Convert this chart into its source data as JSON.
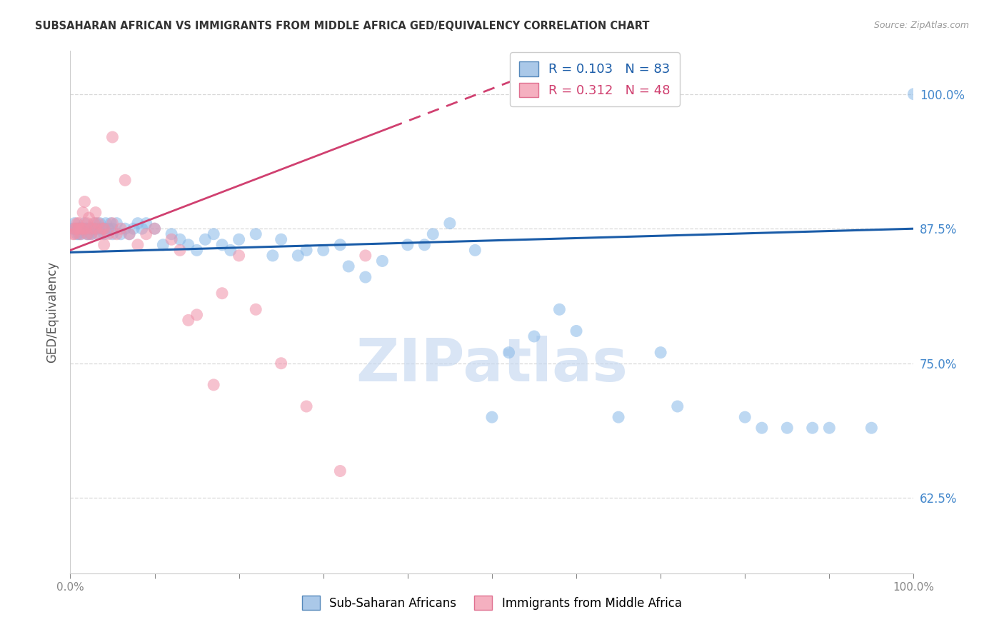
{
  "title": "SUBSAHARAN AFRICAN VS IMMIGRANTS FROM MIDDLE AFRICA GED/EQUIVALENCY CORRELATION CHART",
  "source": "Source: ZipAtlas.com",
  "ylabel": "GED/Equivalency",
  "ytick_labels": [
    "62.5%",
    "75.0%",
    "87.5%",
    "100.0%"
  ],
  "ytick_values": [
    0.625,
    0.75,
    0.875,
    1.0
  ],
  "blue_scatter_color": "#88b8e8",
  "pink_scatter_color": "#f090a8",
  "blue_line_color": "#1a5ca8",
  "pink_line_color": "#d04070",
  "legend_blue_label": "Sub-Saharan Africans",
  "legend_pink_label": "Immigrants from Middle Africa",
  "watermark": "ZIPatlas",
  "blue_x": [
    0.003,
    0.005,
    0.007,
    0.008,
    0.009,
    0.01,
    0.01,
    0.012,
    0.013,
    0.015,
    0.015,
    0.017,
    0.018,
    0.02,
    0.02,
    0.022,
    0.023,
    0.025,
    0.025,
    0.027,
    0.028,
    0.03,
    0.03,
    0.032,
    0.033,
    0.035,
    0.038,
    0.04,
    0.04,
    0.042,
    0.045,
    0.048,
    0.05,
    0.05,
    0.055,
    0.06,
    0.065,
    0.07,
    0.075,
    0.08,
    0.085,
    0.09,
    0.1,
    0.11,
    0.12,
    0.13,
    0.14,
    0.15,
    0.16,
    0.17,
    0.18,
    0.19,
    0.2,
    0.22,
    0.24,
    0.25,
    0.27,
    0.28,
    0.3,
    0.32,
    0.33,
    0.35,
    0.37,
    0.4,
    0.42,
    0.43,
    0.45,
    0.48,
    0.5,
    0.52,
    0.55,
    0.58,
    0.6,
    0.65,
    0.7,
    0.72,
    0.8,
    0.82,
    0.85,
    0.88,
    0.9,
    0.95,
    1.0
  ],
  "blue_y": [
    0.875,
    0.88,
    0.875,
    0.87,
    0.875,
    0.875,
    0.87,
    0.875,
    0.87,
    0.875,
    0.875,
    0.88,
    0.875,
    0.87,
    0.875,
    0.87,
    0.875,
    0.875,
    0.87,
    0.875,
    0.875,
    0.88,
    0.875,
    0.87,
    0.875,
    0.88,
    0.875,
    0.87,
    0.875,
    0.88,
    0.875,
    0.88,
    0.87,
    0.875,
    0.88,
    0.87,
    0.875,
    0.87,
    0.875,
    0.88,
    0.875,
    0.88,
    0.875,
    0.86,
    0.87,
    0.865,
    0.86,
    0.855,
    0.865,
    0.87,
    0.86,
    0.855,
    0.865,
    0.87,
    0.85,
    0.865,
    0.85,
    0.855,
    0.855,
    0.86,
    0.84,
    0.83,
    0.845,
    0.86,
    0.86,
    0.87,
    0.88,
    0.855,
    0.7,
    0.76,
    0.775,
    0.8,
    0.78,
    0.7,
    0.76,
    0.71,
    0.7,
    0.69,
    0.69,
    0.69,
    0.69,
    0.69,
    1.0
  ],
  "pink_x": [
    0.003,
    0.005,
    0.005,
    0.007,
    0.008,
    0.01,
    0.01,
    0.012,
    0.013,
    0.015,
    0.015,
    0.017,
    0.018,
    0.02,
    0.02,
    0.022,
    0.025,
    0.025,
    0.028,
    0.03,
    0.03,
    0.033,
    0.035,
    0.038,
    0.04,
    0.04,
    0.045,
    0.05,
    0.055,
    0.06,
    0.065,
    0.07,
    0.08,
    0.09,
    0.1,
    0.12,
    0.13,
    0.14,
    0.15,
    0.17,
    0.18,
    0.2,
    0.22,
    0.25,
    0.28,
    0.32,
    0.35,
    0.05
  ],
  "pink_y": [
    0.87,
    0.875,
    0.87,
    0.875,
    0.88,
    0.88,
    0.875,
    0.87,
    0.875,
    0.89,
    0.875,
    0.9,
    0.875,
    0.88,
    0.87,
    0.885,
    0.875,
    0.87,
    0.88,
    0.89,
    0.875,
    0.88,
    0.87,
    0.875,
    0.875,
    0.86,
    0.87,
    0.88,
    0.87,
    0.875,
    0.92,
    0.87,
    0.86,
    0.87,
    0.875,
    0.865,
    0.855,
    0.79,
    0.795,
    0.73,
    0.815,
    0.85,
    0.8,
    0.75,
    0.71,
    0.65,
    0.85,
    0.96
  ],
  "xlim": [
    0.0,
    1.0
  ],
  "ylim": [
    0.555,
    1.04
  ],
  "bg_color": "#ffffff",
  "grid_color": "#d8d8d8",
  "title_color": "#333333",
  "source_color": "#999999",
  "right_tick_color": "#4488cc"
}
